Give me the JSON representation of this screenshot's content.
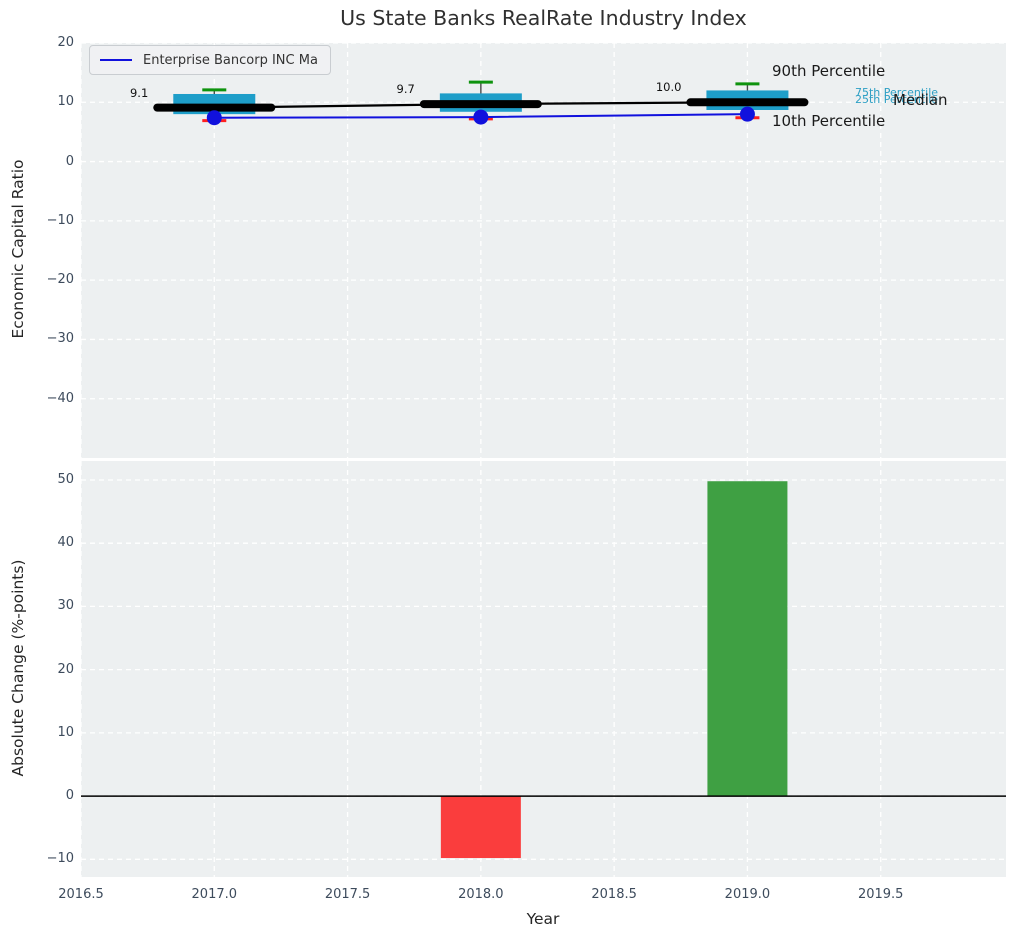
{
  "figure": {
    "title": "Us State Banks RealRate Industry Index",
    "plot_background": "#edf0f1",
    "grid_color": "#ffffff",
    "tick_color": "#3d4b5c"
  },
  "chart_data": [
    {
      "type": "boxplot-timeseries",
      "title": "Us State Banks RealRate Industry Index",
      "ylabel": "Economic Capital Ratio",
      "ylim": [
        -50,
        20
      ],
      "xlim": [
        2016.5,
        2019.97
      ],
      "yticks": [
        "20",
        "10",
        "0",
        "−10",
        "−20",
        "−30",
        "−40"
      ],
      "ytick_values": [
        20,
        10,
        0,
        -10,
        -20,
        -30,
        -40
      ],
      "grid": "white dashed, on",
      "legend": {
        "label": "Enterprise Bancorp INC Ma",
        "position": "upper left",
        "color": "#1111dd"
      },
      "years": [
        2017,
        2018,
        2019
      ],
      "percentiles": {
        "p90": [
          12.1,
          13.4,
          13.1
        ],
        "p75": [
          11.4,
          11.5,
          12.0
        ],
        "median": [
          9.1,
          9.7,
          10.0
        ],
        "p25": [
          8.0,
          8.4,
          8.7
        ],
        "p10": [
          6.9,
          7.2,
          7.4
        ]
      },
      "median_labels": [
        "9.1",
        "9.7",
        "10.0"
      ],
      "company_series": {
        "name": "Enterprise Bancorp INC Ma",
        "values": [
          7.4,
          7.5,
          8.0
        ],
        "color": "#1111dd"
      },
      "percentile_labels": {
        "p90": "90th Percentile",
        "p75": "75th Percentile",
        "p25": "25th Percentile",
        "median": "Median",
        "p10": "10th Percentile"
      },
      "colors": {
        "box": "#1e9ec9",
        "cap_top": "#0e930e",
        "cap_bottom": "#ff1f1f",
        "median_line": "#000000",
        "whisker": "#4a4a4a"
      }
    },
    {
      "type": "bar",
      "xlabel": "Year",
      "ylabel": "Absolute Change (%-points)",
      "ylim": [
        -12.8,
        53
      ],
      "yticks": [
        "50",
        "40",
        "30",
        "20",
        "10",
        "0",
        "−10"
      ],
      "ytick_values": [
        50,
        40,
        30,
        20,
        10,
        0,
        -10
      ],
      "xticks": [
        "2016.5",
        "2017.0",
        "2017.5",
        "2018.0",
        "2018.5",
        "2019.0",
        "2019.5"
      ],
      "xtick_values": [
        2016.5,
        2017.0,
        2017.5,
        2018.0,
        2018.5,
        2019.0,
        2019.5
      ],
      "bars": [
        {
          "x": 2018,
          "value": -9.8,
          "color": "#fa3d3d"
        },
        {
          "x": 2019,
          "value": 49.8,
          "color": "#3fa043"
        }
      ],
      "zero_line_color": "#000000",
      "grid": "white dashed, on"
    }
  ]
}
